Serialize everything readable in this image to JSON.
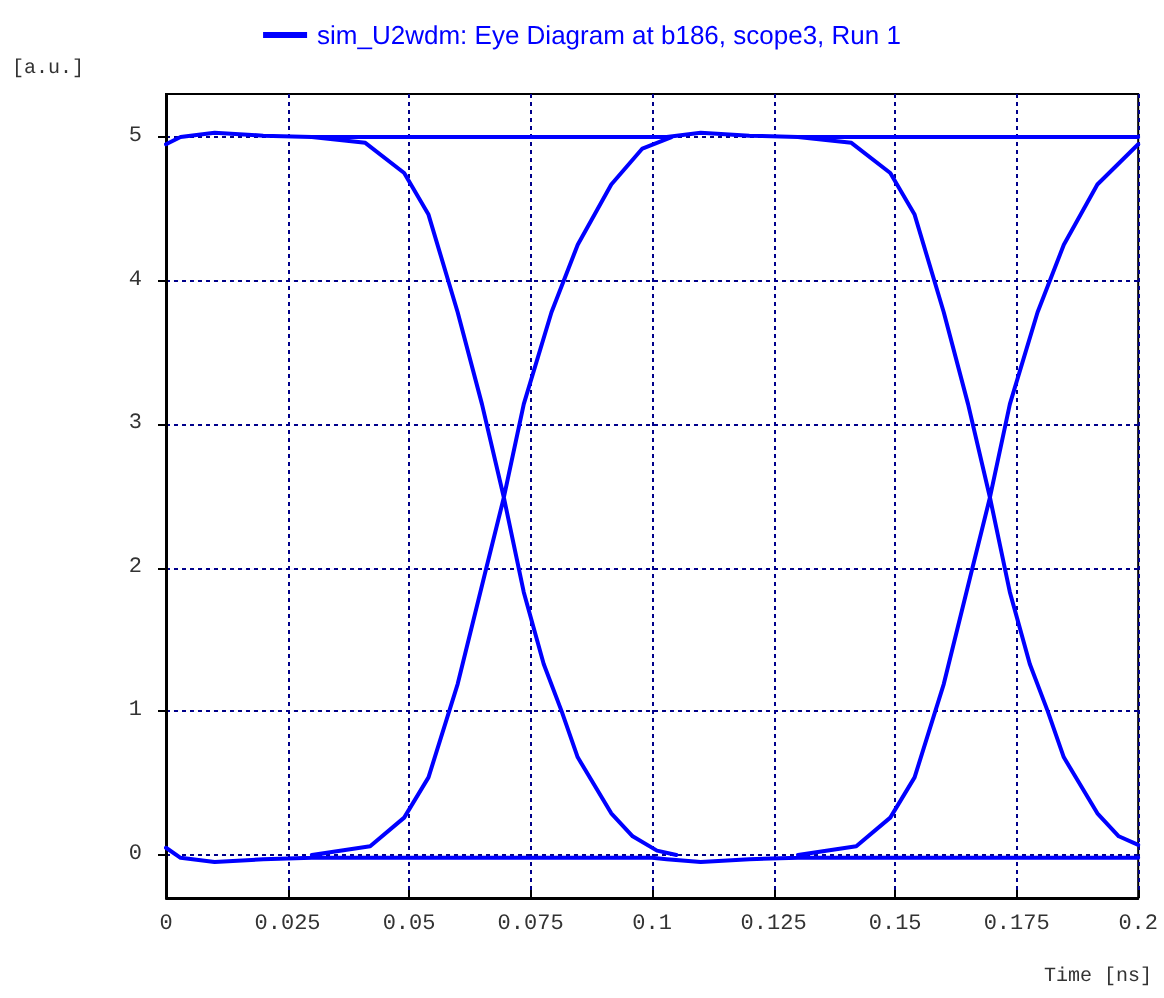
{
  "chart_data": {
    "type": "line",
    "xlabel": "Time [ns]",
    "ylabel": "[a.u.]",
    "series": [
      {
        "name": "sim_U2wdm: Eye Diagram at b186, scope3, Run 1",
        "color": "#0000ff",
        "x": [
          0,
          0.003,
          0.01,
          0.02,
          0.03,
          0.05,
          0.1,
          0.103,
          0.11,
          0.12,
          0.13,
          0.15,
          0.2,
          null,
          0,
          0.003,
          0.01,
          0.02,
          0.03,
          0.05,
          0.1,
          0.103,
          0.11,
          0.12,
          0.13,
          0.15,
          0.2,
          null,
          0.03,
          0.041,
          0.049,
          0.054,
          0.06,
          0.065,
          0.0695,
          0.0736,
          0.0777,
          0.0814,
          0.0847,
          0.0916,
          0.096,
          0.101,
          0.105,
          null,
          0.03,
          0.042,
          0.049,
          0.054,
          0.06,
          0.0654,
          0.0695,
          0.0736,
          0.0793,
          0.0847,
          0.0916,
          0.098,
          0.104,
          null,
          0.13,
          0.141,
          0.149,
          0.154,
          0.16,
          0.165,
          0.1695,
          0.1736,
          0.1777,
          0.1814,
          0.1847,
          0.1916,
          0.196,
          0.2,
          null,
          0.13,
          0.142,
          0.149,
          0.154,
          0.16,
          0.1654,
          0.1695,
          0.1736,
          0.1793,
          0.1847,
          0.1916,
          0.2
        ],
        "values": [
          4.95,
          5.0,
          5.03,
          5.01,
          5.0,
          5.0,
          5.0,
          5.0,
          5.03,
          5.01,
          5.0,
          5.0,
          5.0,
          null,
          0.05,
          -0.02,
          -0.05,
          -0.03,
          -0.02,
          -0.02,
          -0.02,
          -0.03,
          -0.05,
          -0.03,
          -0.02,
          -0.02,
          -0.02,
          null,
          5.0,
          4.96,
          4.75,
          4.46,
          3.78,
          3.14,
          2.49,
          1.83,
          1.33,
          1.0,
          0.68,
          0.29,
          0.13,
          0.03,
          0.0,
          null,
          0.0,
          0.06,
          0.26,
          0.54,
          1.19,
          1.93,
          2.49,
          3.14,
          3.78,
          4.25,
          4.67,
          4.92,
          5.0,
          null,
          5.0,
          4.96,
          4.75,
          4.46,
          3.78,
          3.14,
          2.49,
          1.83,
          1.33,
          1.0,
          0.68,
          0.29,
          0.13,
          0.07,
          null,
          0.0,
          0.06,
          0.26,
          0.54,
          1.19,
          1.93,
          2.49,
          3.14,
          3.78,
          4.25,
          4.67,
          4.95
        ]
      }
    ],
    "xlim": [
      0,
      0.2
    ],
    "xticks": [
      0,
      0.025,
      0.05,
      0.075,
      0.1,
      0.125,
      0.15,
      0.175,
      0.2
    ],
    "ylim": [
      -0.3,
      5.3
    ],
    "yticks": [
      0,
      1,
      2,
      3,
      4,
      5
    ],
    "grid": true,
    "legend": "top",
    "marker": "none",
    "line_style": "solid"
  }
}
